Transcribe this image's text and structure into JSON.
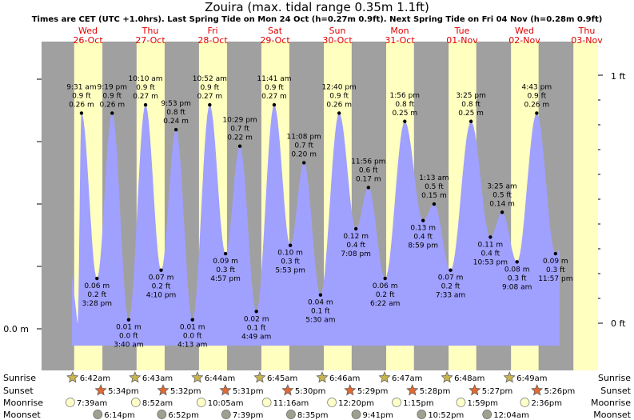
{
  "title": "Zouira (max. tidal range 0.35m 1.1ft)",
  "subtitle": "Times are CET (UTC +1.0hrs). Last Spring Tide on Mon 24 Oct (h=0.27m 0.9ft). Next Spring Tide on Fri 04 Nov (h=0.28m 0.9ft)",
  "colors": {
    "night": "#a0a0a0",
    "day": "#ffffc0",
    "tide_fill": "#a0a0ff",
    "day_label": "#e00000",
    "sun_icon": "#c8b450",
    "sunset_icon": "#e06a32",
    "moonrise_icon": "#ffffc8",
    "moonset_icon": "#a0a090"
  },
  "row_labels": [
    "Sunrise",
    "Sunset",
    "Moonrise",
    "Moonset"
  ],
  "days": [
    {
      "dow": "Wed",
      "date": "26-Oct",
      "sunrise": "6:42am",
      "sunset": "5:34pm",
      "moonrise": "7:39am",
      "moonset": "6:14pm"
    },
    {
      "dow": "Thu",
      "date": "27-Oct",
      "sunrise": "6:43am",
      "sunset": "5:32pm",
      "moonrise": "8:52am",
      "moonset": "6:52pm"
    },
    {
      "dow": "Fri",
      "date": "28-Oct",
      "sunrise": "6:44am",
      "sunset": "5:31pm",
      "moonrise": "10:05am",
      "moonset": "7:39pm"
    },
    {
      "dow": "Sat",
      "date": "29-Oct",
      "sunrise": "6:45am",
      "sunset": "5:30pm",
      "moonrise": "11:16am",
      "moonset": "8:35pm"
    },
    {
      "dow": "Sun",
      "date": "30-Oct",
      "sunrise": "6:46am",
      "sunset": "5:29pm",
      "moonrise": "12:20pm",
      "moonset": "9:41pm"
    },
    {
      "dow": "Mon",
      "date": "31-Oct",
      "sunrise": "6:47am",
      "sunset": "5:28pm",
      "moonrise": "1:15pm",
      "moonset": "10:52pm"
    },
    {
      "dow": "Tue",
      "date": "01-Nov",
      "sunrise": "6:48am",
      "sunset": "5:27pm",
      "moonrise": "1:59pm",
      "moonset": "12:04am"
    },
    {
      "dow": "Wed",
      "date": "02-Nov",
      "sunrise": "6:49am",
      "sunset": "5:26pm",
      "moonrise": "2:36pm",
      "moonset": ""
    },
    {
      "dow": "Thu",
      "date": "03-Nov",
      "sunrise": "",
      "sunset": "",
      "moonrise": "",
      "moonset": ""
    }
  ],
  "chart_data": {
    "type": "area",
    "x_unit": "datetime (CET)",
    "y_unit": "m",
    "y_axis_left_ticks": [
      "0.0 m"
    ],
    "y_axis_right_ticks": [
      "1 ft",
      "0 ft"
    ],
    "ylim": [
      -0.025,
      0.335
    ],
    "tides": [
      {
        "t": "2022-10-26 09:31",
        "time": "9:31 am",
        "m": "0.26 m",
        "ft": "0.9 ft",
        "h": 0.26,
        "kind": "high"
      },
      {
        "t": "2022-10-26 15:28",
        "time": "3:28 pm",
        "m": "0.06 m",
        "ft": "0.2 ft",
        "h": 0.06,
        "kind": "low"
      },
      {
        "t": "2022-10-26 21:19",
        "time": "9:19 pm",
        "m": "0.26 m",
        "ft": "0.9 ft",
        "h": 0.26,
        "kind": "high"
      },
      {
        "t": "2022-10-27 03:40",
        "time": "3:40 am",
        "m": "0.01 m",
        "ft": "0.0 ft",
        "h": 0.01,
        "kind": "low"
      },
      {
        "t": "2022-10-27 10:10",
        "time": "10:10 am",
        "m": "0.27 m",
        "ft": "0.9 ft",
        "h": 0.27,
        "kind": "high"
      },
      {
        "t": "2022-10-27 16:10",
        "time": "4:10 pm",
        "m": "0.07 m",
        "ft": "0.2 ft",
        "h": 0.07,
        "kind": "low"
      },
      {
        "t": "2022-10-27 21:53",
        "time": "9:53 pm",
        "m": "0.24 m",
        "ft": "0.8 ft",
        "h": 0.24,
        "kind": "high"
      },
      {
        "t": "2022-10-28 04:13",
        "time": "4:13 am",
        "m": "0.01 m",
        "ft": "0.0 ft",
        "h": 0.01,
        "kind": "low"
      },
      {
        "t": "2022-10-28 10:52",
        "time": "10:52 am",
        "m": "0.27 m",
        "ft": "0.9 ft",
        "h": 0.27,
        "kind": "high"
      },
      {
        "t": "2022-10-28 16:57",
        "time": "4:57 pm",
        "m": "0.09 m",
        "ft": "0.3 ft",
        "h": 0.09,
        "kind": "low"
      },
      {
        "t": "2022-10-28 22:29",
        "time": "10:29 pm",
        "m": "0.22 m",
        "ft": "0.7 ft",
        "h": 0.22,
        "kind": "high"
      },
      {
        "t": "2022-10-29 04:49",
        "time": "4:49 am",
        "m": "0.02 m",
        "ft": "0.1 ft",
        "h": 0.02,
        "kind": "low"
      },
      {
        "t": "2022-10-29 11:41",
        "time": "11:41 am",
        "m": "0.27 m",
        "ft": "0.9 ft",
        "h": 0.27,
        "kind": "high"
      },
      {
        "t": "2022-10-29 17:53",
        "time": "5:53 pm",
        "m": "0.10 m",
        "ft": "0.3 ft",
        "h": 0.1,
        "kind": "low"
      },
      {
        "t": "2022-10-29 23:08",
        "time": "11:08 pm",
        "m": "0.20 m",
        "ft": "0.7 ft",
        "h": 0.2,
        "kind": "high"
      },
      {
        "t": "2022-10-30 05:30",
        "time": "5:30 am",
        "m": "0.04 m",
        "ft": "0.1 ft",
        "h": 0.04,
        "kind": "low"
      },
      {
        "t": "2022-10-30 12:40",
        "time": "12:40 pm",
        "m": "0.26 m",
        "ft": "0.9 ft",
        "h": 0.26,
        "kind": "high"
      },
      {
        "t": "2022-10-30 19:08",
        "time": "7:08 pm",
        "m": "0.12 m",
        "ft": "0.4 ft",
        "h": 0.12,
        "kind": "low"
      },
      {
        "t": "2022-10-30 23:56",
        "time": "11:56 pm",
        "m": "0.17 m",
        "ft": "0.6 ft",
        "h": 0.17,
        "kind": "high"
      },
      {
        "t": "2022-10-31 06:22",
        "time": "6:22 am",
        "m": "0.06 m",
        "ft": "0.2 ft",
        "h": 0.06,
        "kind": "low"
      },
      {
        "t": "2022-10-31 13:56",
        "time": "1:56 pm",
        "m": "0.25 m",
        "ft": "0.8 ft",
        "h": 0.25,
        "kind": "high"
      },
      {
        "t": "2022-10-31 20:59",
        "time": "8:59 pm",
        "m": "0.13 m",
        "ft": "0.4 ft",
        "h": 0.13,
        "kind": "low"
      },
      {
        "t": "2022-11-01 01:13",
        "time": "1:13 am",
        "m": "0.15 m",
        "ft": "0.5 ft",
        "h": 0.15,
        "kind": "high"
      },
      {
        "t": "2022-11-01 07:33",
        "time": "7:33 am",
        "m": "0.07 m",
        "ft": "0.2 ft",
        "h": 0.07,
        "kind": "low"
      },
      {
        "t": "2022-11-01 15:25",
        "time": "3:25 pm",
        "m": "0.25 m",
        "ft": "0.8 ft",
        "h": 0.25,
        "kind": "high"
      },
      {
        "t": "2022-11-01 22:53",
        "time": "10:53 pm",
        "m": "0.11 m",
        "ft": "0.4 ft",
        "h": 0.11,
        "kind": "low"
      },
      {
        "t": "2022-11-02 03:25",
        "time": "3:25 am",
        "m": "0.14 m",
        "ft": "0.5 ft",
        "h": 0.14,
        "kind": "high"
      },
      {
        "t": "2022-11-02 09:08",
        "time": "9:08 am",
        "m": "0.08 m",
        "ft": "0.3 ft",
        "h": 0.08,
        "kind": "low"
      },
      {
        "t": "2022-11-02 16:43",
        "time": "4:43 pm",
        "m": "0.26 m",
        "ft": "0.9 ft",
        "h": 0.26,
        "kind": "high"
      },
      {
        "t": "2022-11-02 23:57",
        "time": "11:57 pm",
        "m": "0.09 m",
        "ft": "0.3 ft",
        "h": 0.09,
        "kind": "low"
      }
    ]
  }
}
